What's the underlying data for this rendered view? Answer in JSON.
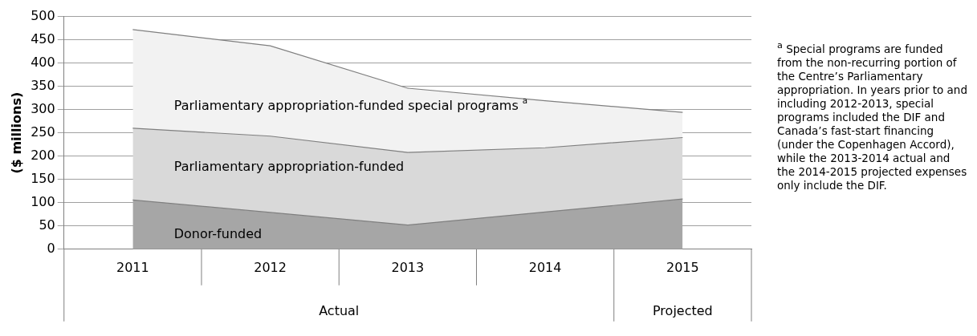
{
  "chart_data": {
    "type": "area",
    "ylabel": "($ millions)",
    "categories": [
      "2011",
      "2012",
      "2013",
      "2014",
      "2015"
    ],
    "stacked": true,
    "ylim": [
      0,
      500
    ],
    "yticks": [
      0,
      50,
      100,
      150,
      200,
      250,
      300,
      350,
      400,
      450,
      500
    ],
    "grid": "y",
    "series": [
      {
        "name": "Donor-funded",
        "color": "#a6a6a6",
        "values": [
          106,
          79,
          52,
          80,
          108
        ]
      },
      {
        "name": "Parliamentary appropriation-funded",
        "color": "#d9d9d9",
        "values": [
          154,
          164,
          156,
          138,
          132
        ]
      },
      {
        "name": "Parliamentary appropriation-funded special programs $^{a}$",
        "color": "#f2f2f2",
        "values": [
          212,
          194,
          138,
          101,
          54
        ]
      }
    ],
    "annotations": [
      "Actual",
      "Projected",
      "$^{a}$ Special programs are funded from the non-recurring portion of the Centre’s Parliamentary appropriation. In years prior to and including 2012-2013, special programs included the DIF and Canada’s fast-start financing (under the Copenhagen Accord), while the 2013-2014 actual and the 2014-2015 projected expenses only include the DIF."
    ]
  }
}
